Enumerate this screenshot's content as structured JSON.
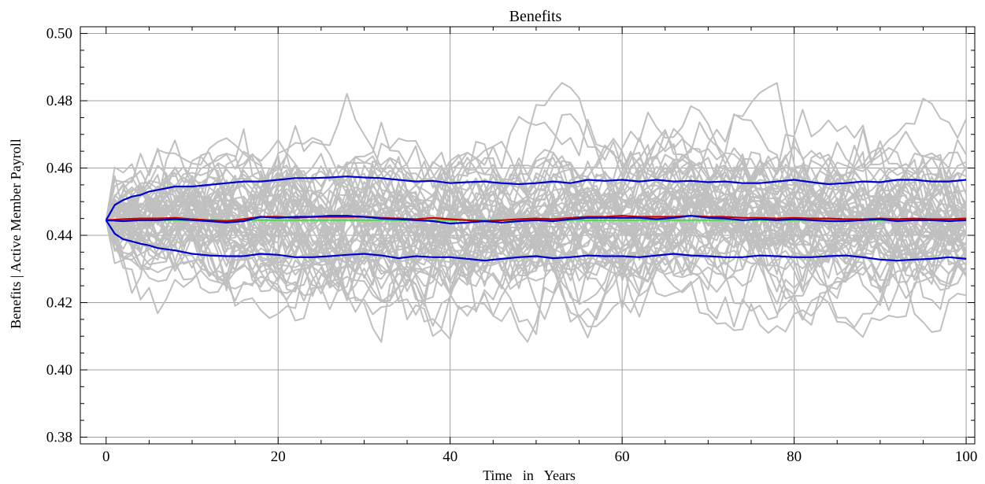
{
  "chart_data": {
    "type": "line",
    "title": "Benefits",
    "xlabel": "Time   in   Years",
    "ylabel": "Benefits | Active Member Payroll",
    "xlim": [
      -3,
      101
    ],
    "ylim": [
      0.378,
      0.502
    ],
    "grid": true,
    "x_ticks": [
      0,
      20,
      40,
      60,
      80,
      100
    ],
    "x_tick_labels": [
      "0",
      "20",
      "40",
      "60",
      "80",
      "100"
    ],
    "y_ticks": [
      0.38,
      0.4,
      0.42,
      0.44,
      0.46,
      0.48,
      0.5
    ],
    "y_tick_labels": [
      "0.38",
      "0.40",
      "0.42",
      "0.44",
      "0.46",
      "0.48",
      "0.50"
    ],
    "colors": {
      "simulation_paths": "#c0c0c0",
      "percentile_bands": "#0000cc",
      "mean": "#cc0000",
      "median": "#0000cc",
      "baseline": "#44dd44",
      "grid": "#a0a0a0"
    },
    "baseline_value": 0.4445,
    "simulation_paths_count": 60,
    "series": [
      {
        "role": "upper-band",
        "x": [
          0,
          1,
          2,
          3,
          4,
          5,
          6,
          8,
          10,
          12,
          14,
          16,
          18,
          20,
          22,
          24,
          26,
          28,
          30,
          32,
          34,
          36,
          38,
          40,
          42,
          44,
          46,
          48,
          50,
          52,
          54,
          56,
          58,
          60,
          62,
          64,
          66,
          68,
          70,
          72,
          74,
          76,
          78,
          80,
          82,
          84,
          86,
          88,
          90,
          92,
          94,
          96,
          98,
          100
        ],
        "values": [
          0.4445,
          0.449,
          0.4505,
          0.4515,
          0.452,
          0.453,
          0.4535,
          0.4545,
          0.4545,
          0.455,
          0.4555,
          0.456,
          0.456,
          0.4565,
          0.457,
          0.457,
          0.4572,
          0.4575,
          0.4572,
          0.457,
          0.4565,
          0.456,
          0.4562,
          0.4555,
          0.4558,
          0.456,
          0.4555,
          0.4552,
          0.4555,
          0.456,
          0.4555,
          0.4565,
          0.4562,
          0.4565,
          0.456,
          0.4565,
          0.456,
          0.4562,
          0.4558,
          0.456,
          0.4555,
          0.4555,
          0.456,
          0.4565,
          0.4558,
          0.4552,
          0.4555,
          0.456,
          0.4558,
          0.4565,
          0.4565,
          0.456,
          0.456,
          0.4565
        ]
      },
      {
        "role": "lower-band",
        "x": [
          0,
          1,
          2,
          3,
          4,
          5,
          6,
          8,
          10,
          12,
          14,
          16,
          18,
          20,
          22,
          24,
          26,
          28,
          30,
          32,
          34,
          36,
          38,
          40,
          42,
          44,
          46,
          48,
          50,
          52,
          54,
          56,
          58,
          60,
          62,
          64,
          66,
          68,
          70,
          72,
          74,
          76,
          78,
          80,
          82,
          84,
          86,
          88,
          90,
          92,
          94,
          96,
          98,
          100
        ],
        "values": [
          0.4445,
          0.4405,
          0.4388,
          0.4382,
          0.4375,
          0.437,
          0.4362,
          0.4355,
          0.4345,
          0.434,
          0.4338,
          0.4338,
          0.4345,
          0.4342,
          0.4335,
          0.4335,
          0.4338,
          0.4342,
          0.4345,
          0.434,
          0.4332,
          0.4338,
          0.4335,
          0.4335,
          0.433,
          0.4325,
          0.433,
          0.4335,
          0.4338,
          0.4332,
          0.4335,
          0.434,
          0.4338,
          0.4338,
          0.4335,
          0.434,
          0.4345,
          0.434,
          0.4338,
          0.4335,
          0.4335,
          0.434,
          0.4338,
          0.4335,
          0.4335,
          0.4338,
          0.434,
          0.4335,
          0.4328,
          0.4325,
          0.4328,
          0.433,
          0.4335,
          0.433
        ]
      },
      {
        "role": "mean",
        "x": [
          0,
          2,
          4,
          6,
          8,
          10,
          12,
          14,
          16,
          18,
          20,
          22,
          24,
          26,
          28,
          30,
          32,
          34,
          36,
          38,
          40,
          42,
          44,
          46,
          48,
          50,
          52,
          54,
          56,
          58,
          60,
          62,
          64,
          66,
          68,
          70,
          72,
          74,
          76,
          78,
          80,
          82,
          84,
          86,
          88,
          90,
          92,
          94,
          96,
          98,
          100
        ],
        "values": [
          0.4445,
          0.4448,
          0.445,
          0.445,
          0.4452,
          0.4448,
          0.4445,
          0.4442,
          0.4448,
          0.4455,
          0.4455,
          0.4452,
          0.4455,
          0.4455,
          0.4455,
          0.4455,
          0.4452,
          0.445,
          0.4448,
          0.4452,
          0.4448,
          0.4445,
          0.4442,
          0.4445,
          0.4448,
          0.445,
          0.4448,
          0.4452,
          0.4455,
          0.4455,
          0.4458,
          0.4455,
          0.4455,
          0.4455,
          0.4458,
          0.4455,
          0.4455,
          0.4452,
          0.4452,
          0.445,
          0.4452,
          0.445,
          0.445,
          0.4448,
          0.4448,
          0.445,
          0.4448,
          0.445,
          0.4448,
          0.4448,
          0.445
        ]
      },
      {
        "role": "median",
        "x": [
          0,
          2,
          4,
          6,
          8,
          10,
          12,
          14,
          16,
          18,
          20,
          22,
          24,
          26,
          28,
          30,
          32,
          34,
          36,
          38,
          40,
          42,
          44,
          46,
          48,
          50,
          52,
          54,
          56,
          58,
          60,
          62,
          64,
          66,
          68,
          70,
          72,
          74,
          76,
          78,
          80,
          82,
          84,
          86,
          88,
          90,
          92,
          94,
          96,
          98,
          100
        ],
        "values": [
          0.4445,
          0.4442,
          0.4445,
          0.4445,
          0.4448,
          0.4445,
          0.4442,
          0.4438,
          0.4442,
          0.4455,
          0.4452,
          0.4455,
          0.4455,
          0.4458,
          0.4458,
          0.4455,
          0.445,
          0.4448,
          0.4445,
          0.4442,
          0.4435,
          0.4438,
          0.4442,
          0.4438,
          0.4442,
          0.4445,
          0.4442,
          0.4448,
          0.4452,
          0.4452,
          0.4452,
          0.4452,
          0.4448,
          0.4452,
          0.4458,
          0.4452,
          0.445,
          0.4445,
          0.4448,
          0.4445,
          0.4448,
          0.4445,
          0.4442,
          0.4442,
          0.4445,
          0.4448,
          0.4442,
          0.4445,
          0.4445,
          0.4442,
          0.4445
        ]
      }
    ]
  }
}
